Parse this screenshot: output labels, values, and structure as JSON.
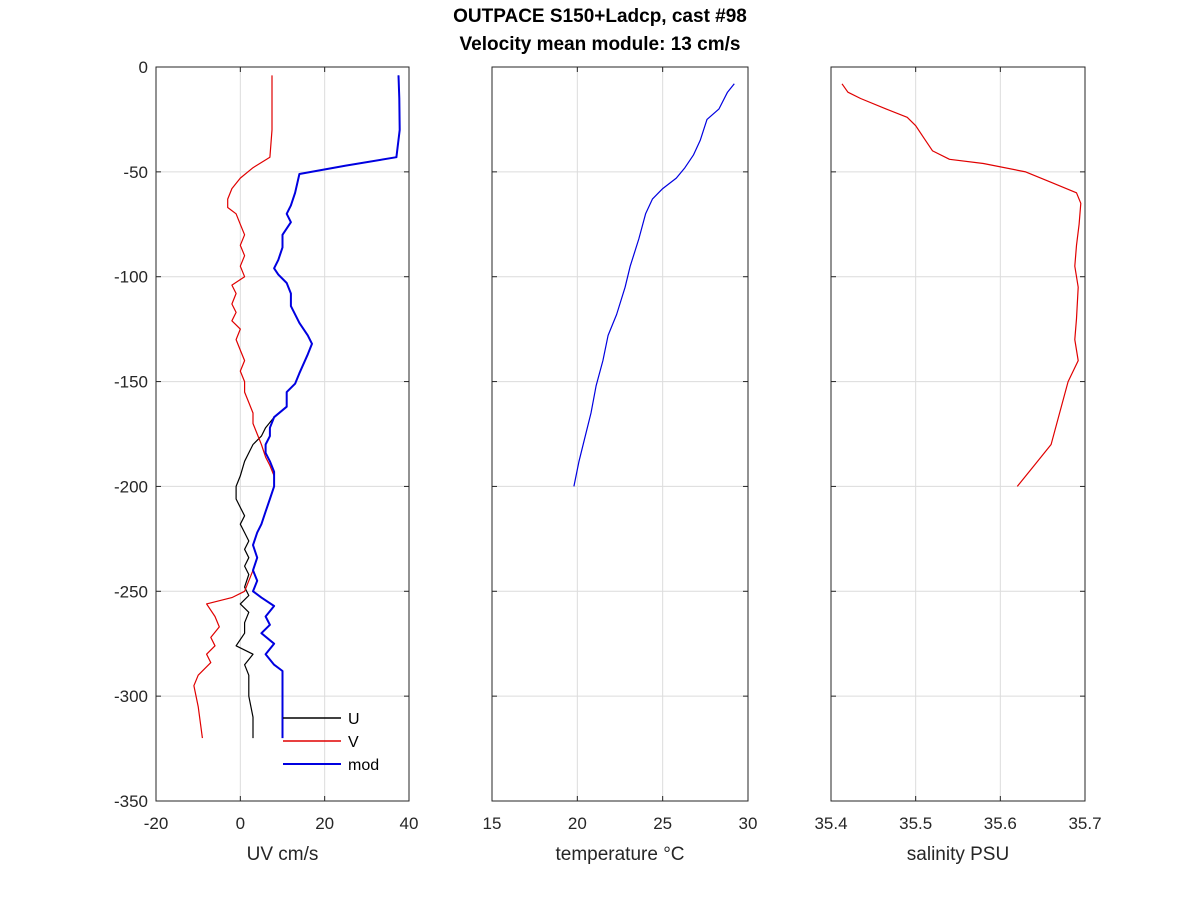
{
  "title_line1": "OUTPACE S150+Ladcp, cast #98",
  "title_line2": "Velocity mean module:  13 cm/s",
  "chart_data": [
    {
      "type": "line",
      "id": "uv",
      "xlabel": "UV cm/s",
      "ylabel": "",
      "xlim": [
        -20,
        40
      ],
      "ylim": [
        -350,
        0
      ],
      "xticks": [
        -20,
        0,
        20,
        40
      ],
      "yticks": [
        -350,
        -300,
        -250,
        -200,
        -150,
        -100,
        -50,
        0
      ],
      "grid": true,
      "legend": {
        "position": "bottom-right",
        "entries": [
          "U",
          "V",
          "mod"
        ]
      },
      "series": [
        {
          "name": "U",
          "color": "#000000",
          "points": [
            [
              37.5,
              -4
            ],
            [
              37.7,
              -15
            ],
            [
              37.8,
              -30
            ],
            [
              37,
              -43
            ],
            [
              25,
              -47
            ],
            [
              14,
              -51
            ],
            [
              13,
              -60
            ],
            [
              12,
              -66
            ],
            [
              11,
              -70
            ],
            [
              12,
              -74
            ],
            [
              10,
              -80
            ],
            [
              10,
              -86
            ],
            [
              9,
              -92
            ],
            [
              8,
              -96
            ],
            [
              9,
              -99
            ],
            [
              11,
              -103
            ],
            [
              12,
              -108
            ],
            [
              12,
              -114
            ],
            [
              14,
              -122
            ],
            [
              16,
              -128
            ],
            [
              17,
              -132
            ],
            [
              16,
              -137
            ],
            [
              14,
              -146
            ],
            [
              13,
              -151
            ],
            [
              11,
              -155
            ],
            [
              11,
              -162
            ],
            [
              8,
              -167
            ],
            [
              6,
              -172
            ],
            [
              5,
              -176
            ],
            [
              3,
              -180
            ],
            [
              2,
              -184
            ],
            [
              1,
              -188
            ],
            [
              0,
              -195
            ],
            [
              -1,
              -200
            ],
            [
              -1,
              -206
            ],
            [
              0,
              -210
            ],
            [
              1,
              -214
            ],
            [
              0,
              -218
            ],
            [
              1,
              -222
            ],
            [
              2,
              -226
            ],
            [
              1,
              -230
            ],
            [
              2,
              -234
            ],
            [
              1,
              -238
            ],
            [
              2,
              -242
            ],
            [
              1,
              -248
            ],
            [
              2,
              -252
            ],
            [
              0,
              -256
            ],
            [
              2,
              -260
            ],
            [
              1,
              -265
            ],
            [
              1,
              -270
            ],
            [
              -1,
              -276
            ],
            [
              3,
              -280
            ],
            [
              1,
              -285
            ],
            [
              2,
              -290
            ],
            [
              2,
              -300
            ],
            [
              3,
              -310
            ],
            [
              3,
              -320
            ]
          ]
        },
        {
          "name": "V",
          "color": "#e00000",
          "points": [
            [
              7.5,
              -4
            ],
            [
              7.5,
              -15
            ],
            [
              7.5,
              -30
            ],
            [
              7,
              -43
            ],
            [
              3,
              -48
            ],
            [
              0,
              -53
            ],
            [
              -2,
              -58
            ],
            [
              -3,
              -63
            ],
            [
              -3,
              -67
            ],
            [
              -1,
              -70
            ],
            [
              0,
              -75
            ],
            [
              1,
              -80
            ],
            [
              0,
              -85
            ],
            [
              1,
              -90
            ],
            [
              0,
              -95
            ],
            [
              1,
              -100
            ],
            [
              -2,
              -104
            ],
            [
              -1,
              -108
            ],
            [
              -2,
              -113
            ],
            [
              -1,
              -117
            ],
            [
              -2,
              -121
            ],
            [
              0,
              -125
            ],
            [
              -1,
              -130
            ],
            [
              0,
              -135
            ],
            [
              1,
              -140
            ],
            [
              0,
              -145
            ],
            [
              1,
              -150
            ],
            [
              1,
              -155
            ],
            [
              2,
              -160
            ],
            [
              3,
              -165
            ],
            [
              3,
              -170
            ],
            [
              4,
              -175
            ],
            [
              5,
              -180
            ],
            [
              6,
              -186
            ],
            [
              7,
              -190
            ],
            [
              8,
              -195
            ],
            [
              8,
              -200
            ],
            [
              7,
              -206
            ],
            [
              6,
              -212
            ],
            [
              5,
              -218
            ],
            [
              4,
              -222
            ],
            [
              3,
              -228
            ],
            [
              4,
              -234
            ],
            [
              3,
              -240
            ],
            [
              2,
              -245
            ],
            [
              1,
              -250
            ],
            [
              -2,
              -253
            ],
            [
              -8,
              -256
            ],
            [
              -6,
              -262
            ],
            [
              -5,
              -267
            ],
            [
              -7,
              -272
            ],
            [
              -6,
              -276
            ],
            [
              -8,
              -280
            ],
            [
              -7,
              -284
            ],
            [
              -10,
              -290
            ],
            [
              -11,
              -295
            ],
            [
              -10,
              -305
            ],
            [
              -9,
              -320
            ]
          ]
        },
        {
          "name": "mod",
          "color": "#0000e0",
          "width": 2,
          "points": [
            [
              37.5,
              -4
            ],
            [
              37.7,
              -15
            ],
            [
              37.8,
              -30
            ],
            [
              37,
              -43
            ],
            [
              25,
              -47
            ],
            [
              14,
              -51
            ],
            [
              13,
              -60
            ],
            [
              12,
              -66
            ],
            [
              11,
              -70
            ],
            [
              12,
              -74
            ],
            [
              10,
              -80
            ],
            [
              10,
              -86
            ],
            [
              9,
              -92
            ],
            [
              8,
              -96
            ],
            [
              9,
              -99
            ],
            [
              11,
              -103
            ],
            [
              12,
              -108
            ],
            [
              12,
              -114
            ],
            [
              14,
              -122
            ],
            [
              16,
              -128
            ],
            [
              17,
              -132
            ],
            [
              16,
              -137
            ],
            [
              14,
              -146
            ],
            [
              13,
              -151
            ],
            [
              11,
              -155
            ],
            [
              11,
              -162
            ],
            [
              8,
              -167
            ],
            [
              7,
              -172
            ],
            [
              7,
              -176
            ],
            [
              6,
              -180
            ],
            [
              6,
              -184
            ],
            [
              7,
              -188
            ],
            [
              8,
              -193
            ],
            [
              8,
              -200
            ],
            [
              7,
              -206
            ],
            [
              6,
              -212
            ],
            [
              5,
              -218
            ],
            [
              4,
              -222
            ],
            [
              3,
              -228
            ],
            [
              4,
              -234
            ],
            [
              3,
              -240
            ],
            [
              4,
              -245
            ],
            [
              3,
              -250
            ],
            [
              5,
              -253
            ],
            [
              8,
              -257
            ],
            [
              6,
              -262
            ],
            [
              7,
              -266
            ],
            [
              5,
              -270
            ],
            [
              8,
              -275
            ],
            [
              6,
              -280
            ],
            [
              8,
              -285
            ],
            [
              10,
              -288
            ],
            [
              10,
              -300
            ],
            [
              10,
              -310
            ],
            [
              10,
              -320
            ]
          ]
        }
      ]
    },
    {
      "type": "line",
      "id": "temperature",
      "xlabel": "temperature °C",
      "ylabel": "",
      "xlim": [
        15,
        30
      ],
      "ylim": [
        -350,
        0
      ],
      "xticks": [
        15,
        20,
        25,
        30
      ],
      "yticks": [
        -350,
        -300,
        -250,
        -200,
        -150,
        -100,
        -50,
        0
      ],
      "grid": true,
      "series": [
        {
          "name": "",
          "color": "#0000e0",
          "points": [
            [
              29.2,
              -8
            ],
            [
              28.8,
              -12
            ],
            [
              28.3,
              -20
            ],
            [
              27.6,
              -25
            ],
            [
              27.2,
              -35
            ],
            [
              26.8,
              -42
            ],
            [
              26.3,
              -48
            ],
            [
              25.8,
              -53
            ],
            [
              25.0,
              -58
            ],
            [
              24.4,
              -63
            ],
            [
              24.0,
              -70
            ],
            [
              23.6,
              -82
            ],
            [
              23.1,
              -95
            ],
            [
              22.8,
              -105
            ],
            [
              22.3,
              -118
            ],
            [
              21.8,
              -128
            ],
            [
              21.5,
              -140
            ],
            [
              21.1,
              -152
            ],
            [
              20.8,
              -165
            ],
            [
              20.4,
              -178
            ],
            [
              20.1,
              -188
            ],
            [
              19.8,
              -200
            ]
          ]
        }
      ]
    },
    {
      "type": "line",
      "id": "salinity",
      "xlabel": "salinity PSU",
      "ylabel": "",
      "xlim": [
        35.4,
        35.7
      ],
      "ylim": [
        -350,
        0
      ],
      "xticks": [
        35.4,
        35.5,
        35.6,
        35.7
      ],
      "yticks": [
        -350,
        -300,
        -250,
        -200,
        -150,
        -100,
        -50,
        0
      ],
      "grid": true,
      "series": [
        {
          "name": "",
          "color": "#e00000",
          "points": [
            [
              35.413,
              -8
            ],
            [
              35.42,
              -12
            ],
            [
              35.435,
              -15
            ],
            [
              35.465,
              -20
            ],
            [
              35.49,
              -24
            ],
            [
              35.5,
              -28
            ],
            [
              35.51,
              -34
            ],
            [
              35.52,
              -40
            ],
            [
              35.54,
              -44
            ],
            [
              35.58,
              -46
            ],
            [
              35.63,
              -50
            ],
            [
              35.66,
              -55
            ],
            [
              35.69,
              -60
            ],
            [
              35.695,
              -65
            ],
            [
              35.693,
              -75
            ],
            [
              35.69,
              -85
            ],
            [
              35.688,
              -95
            ],
            [
              35.692,
              -105
            ],
            [
              35.69,
              -120
            ],
            [
              35.688,
              -130
            ],
            [
              35.692,
              -140
            ],
            [
              35.68,
              -150
            ],
            [
              35.67,
              -165
            ],
            [
              35.66,
              -180
            ],
            [
              35.64,
              -190
            ],
            [
              35.62,
              -200
            ]
          ]
        }
      ]
    }
  ]
}
